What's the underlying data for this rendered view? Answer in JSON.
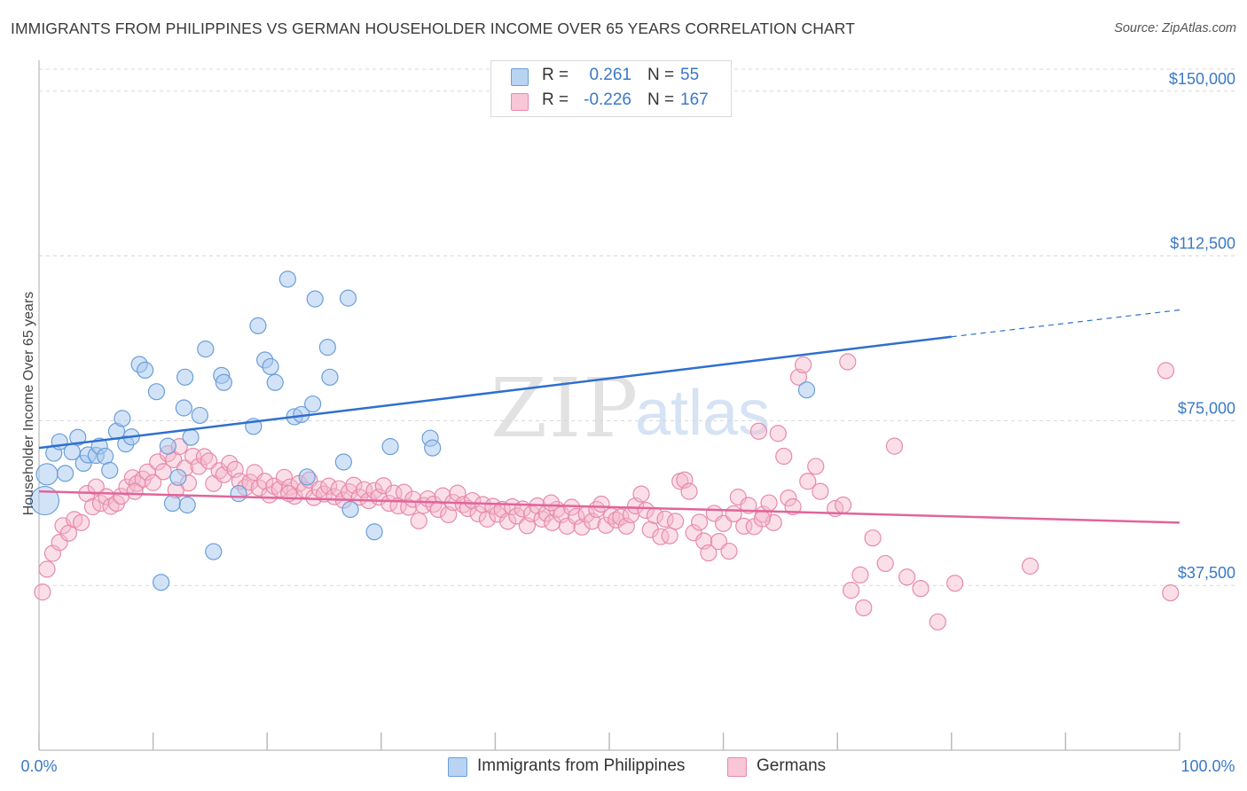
{
  "title": "IMMIGRANTS FROM PHILIPPINES VS GERMAN HOUSEHOLDER INCOME OVER 65 YEARS CORRELATION CHART",
  "source": "Source: ZipAtlas.com",
  "watermark": {
    "zip": "ZIP",
    "atlas": "atlas"
  },
  "colors": {
    "blue": "#a8c8f0",
    "blue_edge": "#6a9fd8",
    "blue_line": "#2f6fd0",
    "pink": "#f5b8cc",
    "pink_edge": "#e88aa8",
    "pink_line": "#e0659a",
    "accent_text": "#3a78c9"
  },
  "legend": {
    "rows": [
      {
        "r_label": "R =",
        "r_value": "0.261",
        "n_label": "N =",
        "n_value": "55"
      },
      {
        "r_label": "R =",
        "r_value": "-0.226",
        "n_label": "N =",
        "n_value": "167"
      }
    ]
  },
  "bottom_legend": [
    "Immigrants from Philippines",
    "Germans"
  ],
  "chart_data": {
    "type": "scatter",
    "title": "IMMIGRANTS FROM PHILIPPINES VS GERMAN HOUSEHOLDER INCOME OVER 65 YEARS CORRELATION CHART",
    "xlabel": "",
    "ylabel": "Householder Income Over 65 years",
    "xlim": [
      0,
      100
    ],
    "ylim": [
      0,
      155000
    ],
    "x_tick_labels": [
      "0.0%",
      "100.0%"
    ],
    "y_ticks": [
      37500,
      75000,
      112500,
      150000
    ],
    "y_tick_labels": [
      "$37,500",
      "$75,000",
      "$112,500",
      "$150,000"
    ],
    "grid": true,
    "legend_position": "top-center",
    "series": [
      {
        "name": "Immigrants from Philippines",
        "trend": {
          "x": [
            0,
            80
          ],
          "y": [
            68800,
            94100
          ],
          "dashed_extension_to": [
            100,
            100200
          ]
        },
        "points": [
          [
            0.5,
            56800
          ],
          [
            0.7,
            62800
          ],
          [
            1.3,
            67600
          ],
          [
            1.8,
            70200
          ],
          [
            2.3,
            63000
          ],
          [
            2.9,
            67900
          ],
          [
            3.4,
            71200
          ],
          [
            3.9,
            65300
          ],
          [
            4.3,
            67200
          ],
          [
            5.0,
            67100
          ],
          [
            5.3,
            69200
          ],
          [
            5.8,
            66900
          ],
          [
            6.2,
            63700
          ],
          [
            6.8,
            72600
          ],
          [
            7.3,
            75500
          ],
          [
            7.6,
            69700
          ],
          [
            8.1,
            71300
          ],
          [
            8.8,
            87800
          ],
          [
            9.3,
            86500
          ],
          [
            10.3,
            81600
          ],
          [
            10.7,
            38200
          ],
          [
            11.3,
            69200
          ],
          [
            11.7,
            56200
          ],
          [
            12.2,
            62100
          ],
          [
            12.7,
            77900
          ],
          [
            12.8,
            84900
          ],
          [
            13.0,
            55800
          ],
          [
            13.3,
            71200
          ],
          [
            14.1,
            76200
          ],
          [
            14.6,
            91300
          ],
          [
            15.3,
            45200
          ],
          [
            16.0,
            85300
          ],
          [
            16.2,
            83700
          ],
          [
            17.5,
            58400
          ],
          [
            18.8,
            73700
          ],
          [
            19.2,
            96600
          ],
          [
            19.8,
            88800
          ],
          [
            20.3,
            87300
          ],
          [
            20.7,
            83700
          ],
          [
            21.8,
            107200
          ],
          [
            22.4,
            75900
          ],
          [
            23.0,
            76400
          ],
          [
            23.5,
            62200
          ],
          [
            24.0,
            78800
          ],
          [
            24.2,
            102700
          ],
          [
            25.3,
            91700
          ],
          [
            25.5,
            84900
          ],
          [
            26.7,
            65600
          ],
          [
            27.1,
            102900
          ],
          [
            27.3,
            54800
          ],
          [
            29.4,
            49700
          ],
          [
            30.8,
            69100
          ],
          [
            34.3,
            71000
          ],
          [
            34.5,
            68800
          ],
          [
            67.3,
            82000
          ]
        ]
      },
      {
        "name": "Germans",
        "trend": {
          "x": [
            0,
            100
          ],
          "y": [
            58900,
            51800
          ]
        },
        "points": [
          [
            0.3,
            36000
          ],
          [
            0.7,
            41200
          ],
          [
            1.2,
            44800
          ],
          [
            1.8,
            47300
          ],
          [
            2.1,
            51100
          ],
          [
            2.6,
            49400
          ],
          [
            3.1,
            52500
          ],
          [
            3.7,
            51800
          ],
          [
            4.2,
            58400
          ],
          [
            4.7,
            55400
          ],
          [
            5.0,
            59900
          ],
          [
            5.4,
            56200
          ],
          [
            5.9,
            57700
          ],
          [
            6.3,
            55500
          ],
          [
            6.8,
            56200
          ],
          [
            7.2,
            57800
          ],
          [
            7.7,
            59900
          ],
          [
            8.2,
            62000
          ],
          [
            8.6,
            60700
          ],
          [
            9.1,
            61700
          ],
          [
            9.5,
            63300
          ],
          [
            10.0,
            60900
          ],
          [
            10.4,
            65600
          ],
          [
            10.9,
            63400
          ],
          [
            11.3,
            67500
          ],
          [
            11.8,
            66100
          ],
          [
            12.3,
            69100
          ],
          [
            12.8,
            64200
          ],
          [
            13.1,
            60800
          ],
          [
            13.5,
            66900
          ],
          [
            14.0,
            64600
          ],
          [
            14.5,
            66800
          ],
          [
            14.9,
            65800
          ],
          [
            15.3,
            60700
          ],
          [
            15.8,
            63600
          ],
          [
            16.2,
            62700
          ],
          [
            16.7,
            65300
          ],
          [
            17.2,
            63900
          ],
          [
            17.6,
            61200
          ],
          [
            18.1,
            59800
          ],
          [
            18.5,
            61000
          ],
          [
            18.9,
            63200
          ],
          [
            19.3,
            59700
          ],
          [
            19.8,
            61200
          ],
          [
            20.2,
            58100
          ],
          [
            20.6,
            60100
          ],
          [
            21.1,
            59400
          ],
          [
            21.5,
            62100
          ],
          [
            22.0,
            59900
          ],
          [
            22.4,
            57800
          ],
          [
            22.8,
            60700
          ],
          [
            23.3,
            59300
          ],
          [
            23.7,
            61500
          ],
          [
            24.1,
            57500
          ],
          [
            24.6,
            59400
          ],
          [
            25.0,
            58300
          ],
          [
            25.4,
            60100
          ],
          [
            25.9,
            57700
          ],
          [
            26.3,
            59500
          ],
          [
            26.7,
            56900
          ],
          [
            27.2,
            58800
          ],
          [
            27.6,
            60300
          ],
          [
            28.1,
            57600
          ],
          [
            28.5,
            59300
          ],
          [
            28.9,
            56800
          ],
          [
            29.4,
            59100
          ],
          [
            29.8,
            57600
          ],
          [
            30.2,
            60200
          ],
          [
            30.7,
            56200
          ],
          [
            31.1,
            58500
          ],
          [
            31.5,
            55600
          ],
          [
            32.0,
            58700
          ],
          [
            32.4,
            55300
          ],
          [
            32.8,
            57100
          ],
          [
            33.3,
            52200
          ],
          [
            33.7,
            55700
          ],
          [
            34.1,
            57200
          ],
          [
            34.6,
            56000
          ],
          [
            35.0,
            54800
          ],
          [
            35.4,
            57900
          ],
          [
            35.9,
            53600
          ],
          [
            36.3,
            56400
          ],
          [
            36.7,
            58500
          ],
          [
            37.2,
            55900
          ],
          [
            37.6,
            55000
          ],
          [
            38.0,
            56800
          ],
          [
            38.5,
            53800
          ],
          [
            38.9,
            55900
          ],
          [
            39.3,
            52600
          ],
          [
            39.8,
            55500
          ],
          [
            40.2,
            53700
          ],
          [
            40.6,
            54800
          ],
          [
            41.1,
            52100
          ],
          [
            41.5,
            55400
          ],
          [
            41.9,
            53300
          ],
          [
            42.4,
            54900
          ],
          [
            42.8,
            51100
          ],
          [
            43.2,
            53800
          ],
          [
            43.7,
            55600
          ],
          [
            44.1,
            52600
          ],
          [
            44.5,
            53900
          ],
          [
            45.0,
            51800
          ],
          [
            45.4,
            54800
          ],
          [
            45.8,
            53600
          ],
          [
            46.3,
            51000
          ],
          [
            46.7,
            55300
          ],
          [
            47.1,
            53200
          ],
          [
            47.6,
            50800
          ],
          [
            48.0,
            53700
          ],
          [
            48.5,
            52100
          ],
          [
            48.9,
            54800
          ],
          [
            49.3,
            56000
          ],
          [
            49.7,
            51200
          ],
          [
            50.2,
            53300
          ],
          [
            50.6,
            52400
          ],
          [
            51.0,
            53100
          ],
          [
            51.5,
            51000
          ],
          [
            51.9,
            53600
          ],
          [
            52.3,
            55600
          ],
          [
            52.8,
            58300
          ],
          [
            53.2,
            54600
          ],
          [
            53.6,
            50200
          ],
          [
            54.0,
            53400
          ],
          [
            54.5,
            48600
          ],
          [
            54.9,
            52600
          ],
          [
            55.3,
            48800
          ],
          [
            55.8,
            52100
          ],
          [
            56.2,
            61200
          ],
          [
            56.6,
            61500
          ],
          [
            57.0,
            58900
          ],
          [
            57.4,
            49500
          ],
          [
            57.9,
            51900
          ],
          [
            58.3,
            47600
          ],
          [
            58.7,
            44900
          ],
          [
            59.2,
            53900
          ],
          [
            59.6,
            47500
          ],
          [
            60.0,
            51600
          ],
          [
            60.5,
            45300
          ],
          [
            60.9,
            53800
          ],
          [
            61.3,
            57600
          ],
          [
            61.8,
            51000
          ],
          [
            62.2,
            55700
          ],
          [
            62.7,
            50900
          ],
          [
            63.1,
            72600
          ],
          [
            63.5,
            53700
          ],
          [
            64.0,
            56300
          ],
          [
            64.4,
            51800
          ],
          [
            64.8,
            72100
          ],
          [
            65.3,
            66900
          ],
          [
            65.7,
            57400
          ],
          [
            66.1,
            55400
          ],
          [
            66.6,
            84900
          ],
          [
            67.0,
            87700
          ],
          [
            67.4,
            61200
          ],
          [
            68.1,
            64600
          ],
          [
            68.5,
            58900
          ],
          [
            69.8,
            55000
          ],
          [
            70.5,
            55800
          ],
          [
            71.2,
            36400
          ],
          [
            72.0,
            39900
          ],
          [
            72.3,
            32400
          ],
          [
            73.1,
            48300
          ],
          [
            74.2,
            42500
          ],
          [
            75.0,
            69200
          ],
          [
            76.1,
            39400
          ],
          [
            77.3,
            36800
          ],
          [
            78.8,
            29200
          ],
          [
            80.3,
            38000
          ],
          [
            86.9,
            41900
          ],
          [
            98.8,
            86400
          ],
          [
            99.2,
            35800
          ],
          [
            70.9,
            88400
          ],
          [
            63.4,
            52700
          ],
          [
            44.9,
            56300
          ],
          [
            21.9,
            58400
          ],
          [
            12.0,
            59200
          ],
          [
            8.4,
            58900
          ]
        ]
      }
    ]
  }
}
